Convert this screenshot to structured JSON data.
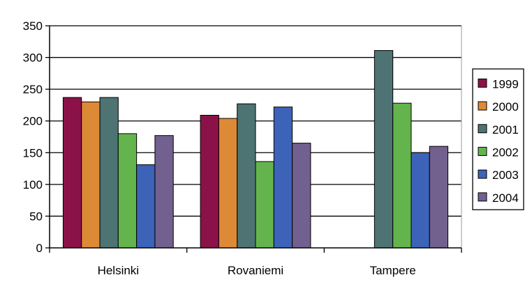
{
  "chart_data": {
    "type": "bar",
    "title": "",
    "xlabel": "",
    "ylabel": "",
    "ylim": [
      0,
      350
    ],
    "yticks": [
      0,
      50,
      100,
      150,
      200,
      250,
      300,
      350
    ],
    "grid": true,
    "legend_position": "right",
    "categories": [
      "Helsinki",
      "Rovaniemi",
      "Tampere"
    ],
    "series": [
      {
        "name": "1999",
        "color": "#8b1248",
        "values": [
          237,
          209,
          null
        ]
      },
      {
        "name": "2000",
        "color": "#dd8a37",
        "values": [
          230,
          204,
          null
        ]
      },
      {
        "name": "2001",
        "color": "#4d7373",
        "values": [
          237,
          227,
          311
        ]
      },
      {
        "name": "2002",
        "color": "#63b44d",
        "values": [
          180,
          136,
          228
        ]
      },
      {
        "name": "2003",
        "color": "#3d63b8",
        "values": [
          131,
          222,
          150
        ]
      },
      {
        "name": "2004",
        "color": "#72608f",
        "values": [
          177,
          165,
          160
        ]
      }
    ]
  }
}
